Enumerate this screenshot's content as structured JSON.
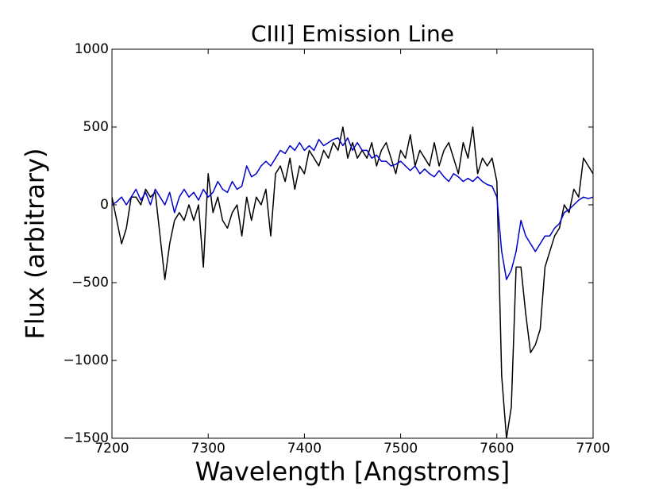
{
  "chart_data": {
    "type": "line",
    "title": "CIII] Emission Line",
    "x_label": "Wavelength [Angstroms]",
    "y_label": "Flux (arbitrary)",
    "x": [
      7200,
      7205,
      7210,
      7215,
      7220,
      7225,
      7230,
      7235,
      7240,
      7245,
      7250,
      7255,
      7260,
      7265,
      7270,
      7275,
      7280,
      7285,
      7290,
      7295,
      7300,
      7305,
      7310,
      7315,
      7320,
      7325,
      7330,
      7335,
      7340,
      7345,
      7350,
      7355,
      7360,
      7365,
      7370,
      7375,
      7380,
      7385,
      7390,
      7395,
      7400,
      7405,
      7410,
      7415,
      7420,
      7425,
      7430,
      7435,
      7440,
      7445,
      7450,
      7455,
      7460,
      7465,
      7470,
      7475,
      7480,
      7485,
      7490,
      7495,
      7500,
      7505,
      7510,
      7515,
      7520,
      7525,
      7530,
      7535,
      7540,
      7545,
      7550,
      7555,
      7560,
      7565,
      7570,
      7575,
      7580,
      7585,
      7590,
      7595,
      7600,
      7605,
      7610,
      7615,
      7620,
      7625,
      7630,
      7635,
      7640,
      7645,
      7650,
      7655,
      7660,
      7665,
      7670,
      7675,
      7680,
      7685,
      7690,
      7695,
      7700
    ],
    "series": [
      {
        "color": "#000000",
        "values": [
          50,
          -100,
          -250,
          -150,
          50,
          50,
          0,
          100,
          50,
          80,
          -200,
          -480,
          -250,
          -100,
          -50,
          -100,
          0,
          -100,
          0,
          -400,
          200,
          -50,
          50,
          -100,
          -150,
          -50,
          0,
          -200,
          50,
          -100,
          50,
          0,
          100,
          -200,
          200,
          250,
          150,
          300,
          100,
          250,
          200,
          350,
          300,
          250,
          350,
          300,
          400,
          350,
          500,
          300,
          400,
          300,
          350,
          300,
          400,
          250,
          350,
          400,
          300,
          200,
          350,
          300,
          450,
          250,
          350,
          300,
          250,
          400,
          250,
          350,
          400,
          300,
          200,
          400,
          300,
          500,
          200,
          300,
          250,
          300,
          150,
          -1100,
          -1500,
          -1300,
          -400,
          -400,
          -700,
          -950,
          -900,
          -800,
          -400,
          -300,
          -200,
          -150,
          0,
          -50,
          100,
          50,
          300,
          250,
          200
        ]
      },
      {
        "color": "#0000cc",
        "values": [
          0,
          20,
          50,
          0,
          50,
          100,
          30,
          80,
          0,
          100,
          50,
          0,
          80,
          -50,
          50,
          100,
          50,
          80,
          30,
          100,
          50,
          80,
          150,
          100,
          80,
          150,
          100,
          120,
          250,
          180,
          200,
          250,
          280,
          250,
          300,
          350,
          330,
          380,
          350,
          400,
          350,
          380,
          350,
          420,
          380,
          400,
          420,
          430,
          380,
          430,
          350,
          400,
          350,
          350,
          300,
          320,
          280,
          280,
          250,
          260,
          280,
          250,
          220,
          250,
          200,
          230,
          200,
          180,
          220,
          180,
          150,
          200,
          180,
          150,
          170,
          150,
          180,
          150,
          130,
          120,
          50,
          -300,
          -480,
          -420,
          -300,
          -100,
          -200,
          -250,
          -300,
          -250,
          -200,
          -200,
          -150,
          -120,
          -50,
          -30,
          0,
          30,
          50,
          40,
          50
        ]
      }
    ],
    "xlim": [
      7200,
      7700
    ],
    "xticks": [
      7200,
      7300,
      7400,
      7500,
      7600,
      7700
    ],
    "ylim": [
      -1500,
      1000
    ],
    "yticks": [
      {
        "value": -1500,
        "label": "−1500"
      },
      {
        "value": -1000,
        "label": "−1000"
      },
      {
        "value": -500,
        "label": "−500"
      },
      0,
      500,
      1000
    ],
    "grid": false
  }
}
